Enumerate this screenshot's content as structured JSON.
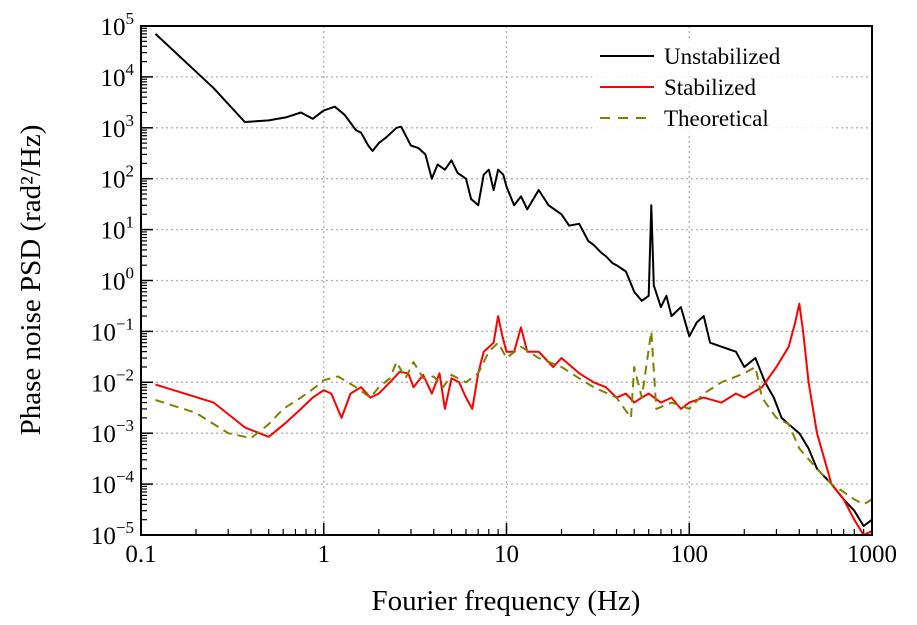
{
  "chart_data": {
    "type": "line",
    "xlabel": "Fourier frequency (Hz)",
    "ylabel": "Phase noise PSD (rad²/Hz)",
    "xscale": "log",
    "yscale": "log",
    "xlim": [
      0.1,
      1000
    ],
    "ylim": [
      1e-05,
      100000.0
    ],
    "grid": true,
    "legend_position": "top-right",
    "x_tick_labels": [
      {
        "value": 0.1,
        "label": "0.1"
      },
      {
        "value": 1,
        "label": "1"
      },
      {
        "value": 10,
        "label": "10"
      },
      {
        "value": 100,
        "label": "100"
      },
      {
        "value": 1000,
        "label": "1000"
      }
    ],
    "y_tick_labels": [
      {
        "value": 100000.0,
        "base": "10",
        "exp": "5"
      },
      {
        "value": 10000.0,
        "base": "10",
        "exp": "4"
      },
      {
        "value": 1000.0,
        "base": "10",
        "exp": "3"
      },
      {
        "value": 100.0,
        "base": "10",
        "exp": "2"
      },
      {
        "value": 10.0,
        "base": "10",
        "exp": "1"
      },
      {
        "value": 1.0,
        "base": "10",
        "exp": "0"
      },
      {
        "value": 0.1,
        "base": "10",
        "exp": "−1"
      },
      {
        "value": 0.01,
        "base": "10",
        "exp": "−2"
      },
      {
        "value": 0.001,
        "base": "10",
        "exp": "−3"
      },
      {
        "value": 0.0001,
        "base": "10",
        "exp": "−4"
      },
      {
        "value": 1e-05,
        "base": "10",
        "exp": "−5"
      }
    ],
    "series": [
      {
        "name": "Unstabilized",
        "color": "#000000",
        "style": "solid",
        "x": [
          0.12,
          0.25,
          0.37,
          0.5,
          0.62,
          0.75,
          0.87,
          1.0,
          1.15,
          1.3,
          1.5,
          1.6,
          1.75,
          1.85,
          2.0,
          2.2,
          2.5,
          2.65,
          3.0,
          3.3,
          3.6,
          3.9,
          4.2,
          4.6,
          5.0,
          5.4,
          6.0,
          6.4,
          7.0,
          7.5,
          8.0,
          8.5,
          9.0,
          9.6,
          10,
          11,
          12,
          13,
          15,
          17,
          20,
          22,
          25,
          28,
          30,
          33,
          35,
          38,
          40,
          45,
          50,
          55,
          60,
          62,
          64,
          70,
          75,
          80,
          90,
          100,
          110,
          120,
          130,
          150,
          180,
          200,
          230,
          260,
          290,
          320,
          350,
          400,
          450,
          500,
          600,
          700,
          800,
          900,
          1000
        ],
        "y": [
          70000,
          6000,
          1300,
          1400,
          1600,
          2000,
          1500,
          2200,
          2600,
          1800,
          900,
          800,
          450,
          350,
          500,
          650,
          1000,
          1050,
          450,
          400,
          300,
          100,
          190,
          150,
          230,
          130,
          100,
          40,
          30,
          120,
          150,
          60,
          150,
          120,
          70,
          30,
          45,
          25,
          60,
          30,
          20,
          12,
          13,
          6,
          5,
          3.5,
          3,
          2.2,
          2,
          1.5,
          0.6,
          0.4,
          0.5,
          30,
          0.8,
          0.3,
          0.5,
          0.2,
          0.3,
          0.08,
          0.15,
          0.2,
          0.06,
          0.05,
          0.04,
          0.02,
          0.03,
          0.01,
          0.005,
          0.002,
          0.0015,
          0.001,
          0.0005,
          0.0002,
          0.0001,
          5e-05,
          3e-05,
          1.5e-05,
          2e-05
        ]
      },
      {
        "name": "Stabilized",
        "color": "#ff0000",
        "style": "solid",
        "x": [
          0.12,
          0.25,
          0.37,
          0.5,
          0.62,
          0.75,
          0.87,
          1.0,
          1.1,
          1.25,
          1.4,
          1.6,
          1.8,
          2.0,
          2.3,
          2.6,
          2.9,
          3.1,
          3.5,
          3.9,
          4.3,
          4.6,
          5.0,
          5.5,
          6,
          6.5,
          7,
          7.5,
          8.5,
          9,
          9.5,
          10,
          11,
          12,
          13,
          15,
          18,
          20,
          25,
          30,
          35,
          40,
          45,
          50,
          55,
          60,
          70,
          80,
          90,
          100,
          120,
          150,
          180,
          200,
          250,
          300,
          350,
          380,
          400,
          420,
          450,
          500,
          550,
          600,
          700,
          800,
          900,
          1000
        ],
        "y": [
          0.009,
          0.004,
          0.0013,
          0.00085,
          0.0016,
          0.003,
          0.005,
          0.007,
          0.006,
          0.002,
          0.006,
          0.008,
          0.005,
          0.006,
          0.01,
          0.016,
          0.015,
          0.008,
          0.014,
          0.006,
          0.015,
          0.003,
          0.012,
          0.01,
          0.005,
          0.003,
          0.015,
          0.04,
          0.06,
          0.2,
          0.08,
          0.04,
          0.04,
          0.12,
          0.04,
          0.04,
          0.02,
          0.03,
          0.015,
          0.01,
          0.008,
          0.005,
          0.006,
          0.004,
          0.005,
          0.006,
          0.004,
          0.005,
          0.003,
          0.004,
          0.005,
          0.004,
          0.006,
          0.005,
          0.008,
          0.02,
          0.05,
          0.15,
          0.35,
          0.1,
          0.01,
          0.001,
          0.0003,
          0.0001,
          5e-05,
          2e-05,
          1e-05,
          1.2e-05
        ]
      },
      {
        "name": "Theoretical",
        "color": "#808000",
        "style": "dashed",
        "x": [
          0.12,
          0.2,
          0.3,
          0.4,
          0.5,
          0.6,
          0.75,
          0.9,
          1.0,
          1.2,
          1.5,
          1.8,
          2.0,
          2.3,
          2.5,
          2.8,
          3.1,
          3.5,
          4,
          4.5,
          5,
          6,
          7,
          8,
          9,
          10,
          12,
          15,
          20,
          25,
          30,
          40,
          48,
          50,
          55,
          62,
          66,
          80,
          100,
          120,
          150,
          200,
          230,
          250,
          300,
          350,
          400,
          500,
          600,
          700,
          800,
          900,
          1000
        ],
        "y": [
          0.0045,
          0.0025,
          0.001,
          0.0008,
          0.0015,
          0.003,
          0.005,
          0.008,
          0.011,
          0.013,
          0.008,
          0.005,
          0.008,
          0.012,
          0.025,
          0.012,
          0.025,
          0.012,
          0.013,
          0.008,
          0.014,
          0.01,
          0.015,
          0.04,
          0.06,
          0.03,
          0.05,
          0.03,
          0.02,
          0.012,
          0.008,
          0.005,
          0.002,
          0.02,
          0.005,
          0.1,
          0.003,
          0.004,
          0.003,
          0.006,
          0.01,
          0.015,
          0.02,
          0.005,
          0.002,
          0.0015,
          0.0005,
          0.0002,
          0.0001,
          7e-05,
          5e-05,
          4e-05,
          5e-05
        ]
      }
    ]
  }
}
